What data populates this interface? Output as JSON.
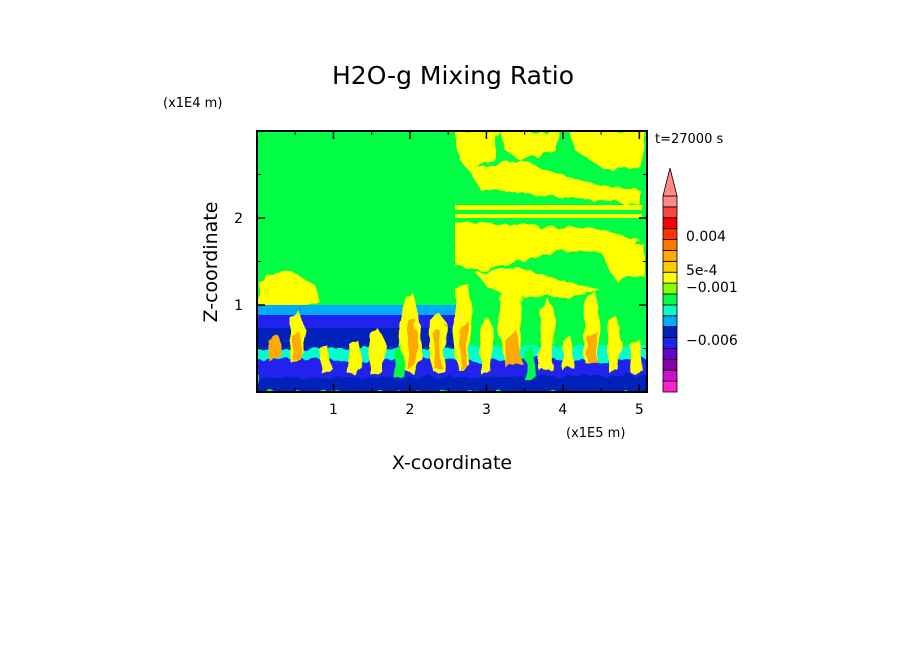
{
  "chart_data": {
    "type": "heatmap",
    "title": "H2O-g Mixing Ratio",
    "xlabel": "X-coordinate",
    "ylabel": "Z-coordinate",
    "x_unit": "(x1E5 m)",
    "y_unit": "(x1E4 m)",
    "time_label": "t=27000 s",
    "xlim": [
      0,
      5.1
    ],
    "ylim": [
      0,
      3.0
    ],
    "x_ticks": [
      "1",
      "2",
      "3",
      "4",
      "5"
    ],
    "y_ticks": [
      "1",
      "2"
    ],
    "colorbar": {
      "colors": [
        "#ff22cc",
        "#cc11cc",
        "#8800aa",
        "#6600cc",
        "#2222ee",
        "#0022bb",
        "#00aaff",
        "#00ffcc",
        "#00ff44",
        "#88ff00",
        "#ffff00",
        "#ffcc00",
        "#ffaa00",
        "#ff7700",
        "#ff3300",
        "#ff0000",
        "#ff4444",
        "#ff8888"
      ],
      "labels": [
        "0.004",
        "5e-4",
        "−0.001",
        "−0.006"
      ],
      "extend_max": true
    }
  }
}
